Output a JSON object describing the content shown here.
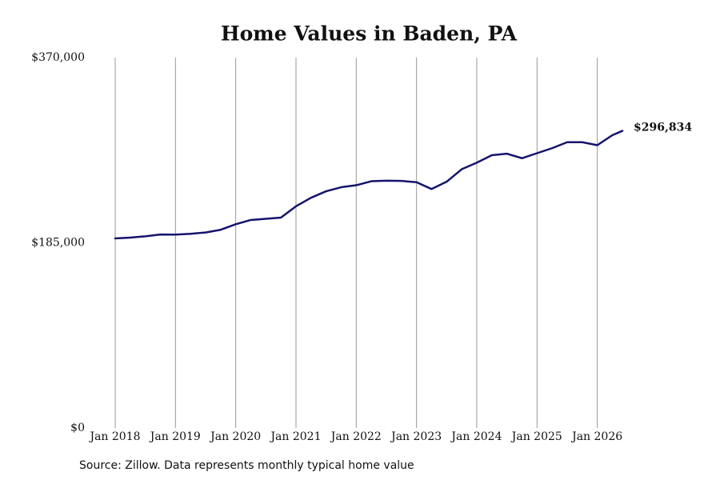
{
  "chart_data": {
    "type": "line",
    "title": "Home Values in Baden, PA",
    "source": "Source: Zillow. Data represents monthly typical home value",
    "x": [
      "2018-01",
      "2018-04",
      "2018-07",
      "2018-10",
      "2019-01",
      "2019-04",
      "2019-07",
      "2019-10",
      "2020-01",
      "2020-04",
      "2020-07",
      "2020-10",
      "2021-01",
      "2021-04",
      "2021-07",
      "2021-10",
      "2022-01",
      "2022-04",
      "2022-07",
      "2022-10",
      "2023-01",
      "2023-04",
      "2023-07",
      "2023-10",
      "2024-01",
      "2024-04",
      "2024-07",
      "2024-10",
      "2025-01",
      "2025-04",
      "2025-07",
      "2025-10",
      "2026-01",
      "2026-04",
      "2026-06"
    ],
    "series": [
      {
        "name": "Home Values",
        "color": "#15146b",
        "values": [
          189400,
          190200,
          191500,
          193300,
          193200,
          194000,
          195300,
          198000,
          203500,
          207800,
          209000,
          210200,
          221500,
          230000,
          236500,
          240500,
          242500,
          246500,
          247000,
          246800,
          245500,
          238700,
          246000,
          258500,
          265000,
          272500,
          274000,
          269500,
          274500,
          279500,
          285500,
          285500,
          282500,
          292500,
          296834
        ],
        "value_labels": [
          null,
          null,
          null,
          null,
          null,
          null,
          null,
          null,
          null,
          null,
          null,
          null,
          null,
          null,
          null,
          null,
          null,
          null,
          null,
          null,
          null,
          null,
          null,
          null,
          null,
          null,
          null,
          null,
          null,
          null,
          null,
          null,
          null,
          null,
          "$296,834"
        ]
      }
    ],
    "xlim": [
      "2018-01",
      "2026-06"
    ],
    "xticks": [
      {
        "value": "2018-01",
        "label": "Jan 2018"
      },
      {
        "value": "2019-01",
        "label": "Jan 2019"
      },
      {
        "value": "2020-01",
        "label": "Jan 2020"
      },
      {
        "value": "2021-01",
        "label": "Jan 2021"
      },
      {
        "value": "2022-01",
        "label": "Jan 2022"
      },
      {
        "value": "2023-01",
        "label": "Jan 2023"
      },
      {
        "value": "2024-01",
        "label": "Jan 2024"
      },
      {
        "value": "2025-01",
        "label": "Jan 2025"
      },
      {
        "value": "2026-01",
        "label": "Jan 2026"
      }
    ],
    "ylim": [
      0,
      370000
    ],
    "yticks": [
      {
        "value": 0,
        "label": "$0"
      },
      {
        "value": 185000,
        "label": "$185,000"
      },
      {
        "value": 370000,
        "label": "$370,000"
      }
    ],
    "grid": "x"
  }
}
